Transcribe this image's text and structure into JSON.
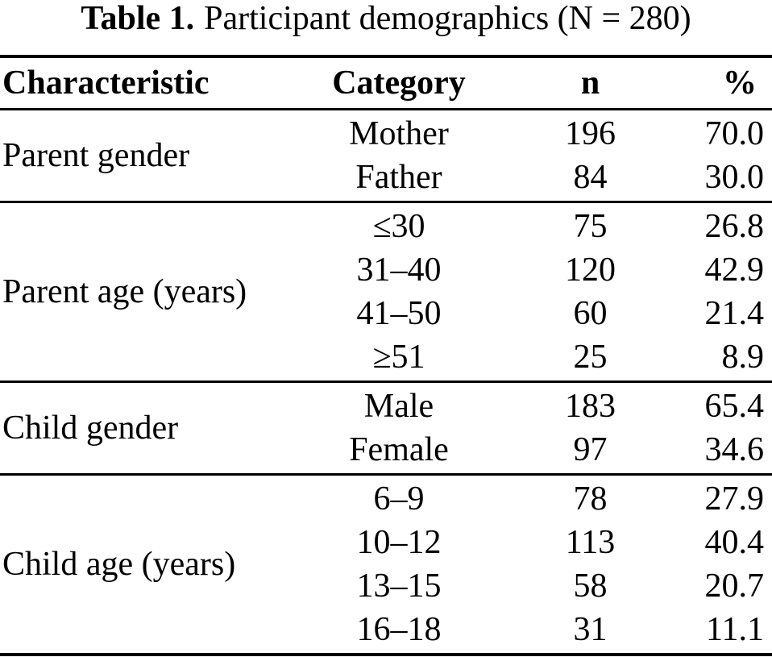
{
  "caption": {
    "label": "Table 1.",
    "text": "Participant demographics (N = 280)"
  },
  "table": {
    "headers": [
      "Characteristic",
      "Category",
      "n",
      "%"
    ],
    "sections": [
      {
        "characteristic": "Parent gender",
        "rows": [
          {
            "category": "Mother",
            "n": "196",
            "pct": "70.0"
          },
          {
            "category": "Father",
            "n": "84",
            "pct": "30.0"
          }
        ]
      },
      {
        "characteristic": "Parent age (years)",
        "rows": [
          {
            "category": "≤30",
            "n": "75",
            "pct": "26.8"
          },
          {
            "category": "31–40",
            "n": "120",
            "pct": "42.9"
          },
          {
            "category": "41–50",
            "n": "60",
            "pct": "21.4"
          },
          {
            "category": "≥51",
            "n": "25",
            "pct": "8.9"
          }
        ]
      },
      {
        "characteristic": "Child gender",
        "rows": [
          {
            "category": "Male",
            "n": "183",
            "pct": "65.4"
          },
          {
            "category": "Female",
            "n": "97",
            "pct": "34.6"
          }
        ]
      },
      {
        "characteristic": "Child age (years)",
        "rows": [
          {
            "category": "6–9",
            "n": "78",
            "pct": "27.9"
          },
          {
            "category": "10–12",
            "n": "113",
            "pct": "40.4"
          },
          {
            "category": "13–15",
            "n": "58",
            "pct": "20.7"
          },
          {
            "category": "16–18",
            "n": "31",
            "pct": "11.1"
          }
        ]
      }
    ]
  },
  "colors": {
    "text": "#000000",
    "background": "#ffffff",
    "rule": "#000000"
  }
}
